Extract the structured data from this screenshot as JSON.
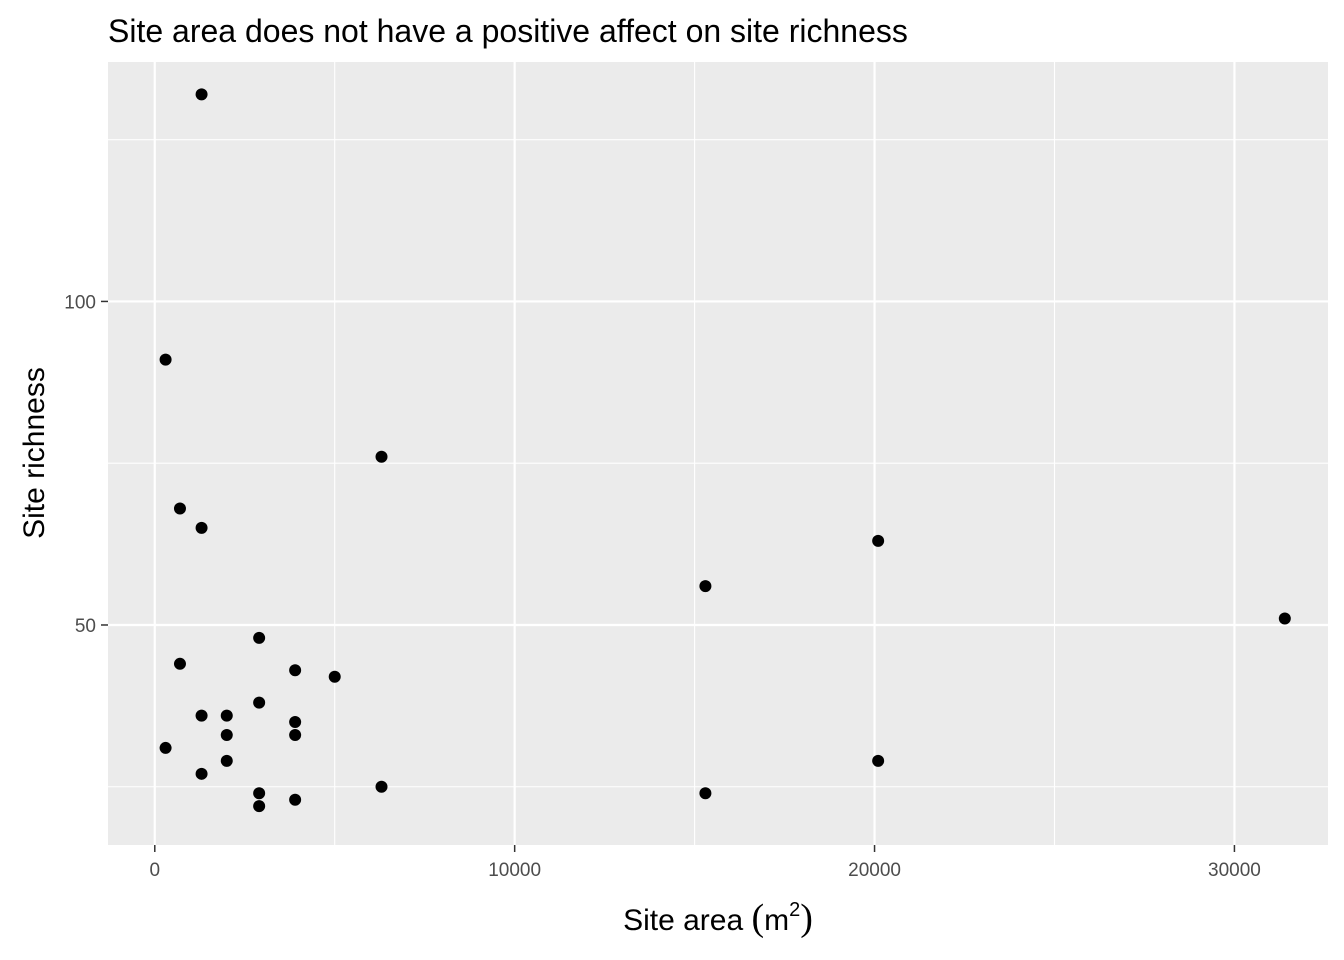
{
  "chart_data": {
    "type": "scatter",
    "title": "Site area does not have a positive affect on site richness",
    "xlabel": {
      "prefix": "Site area ",
      "open": "(",
      "unit": "m",
      "exponent": "2",
      "close": ")"
    },
    "ylabel": "Site richness",
    "xlim": [
      -1300,
      32600
    ],
    "ylim": [
      16,
      137
    ],
    "x_ticks": [
      0,
      10000,
      20000,
      30000
    ],
    "x_tick_labels": [
      "0",
      "10000",
      "20000",
      "30000"
    ],
    "x_minor": [
      5000,
      15000,
      25000
    ],
    "y_ticks": [
      50,
      100
    ],
    "y_tick_labels": [
      "50",
      "100"
    ],
    "y_minor": [
      25,
      75,
      125
    ],
    "grid": true,
    "colors": {
      "panel": "#ebebeb",
      "grid": "#ffffff",
      "point": "#000000"
    },
    "points": [
      {
        "x": 1300,
        "y": 132
      },
      {
        "x": 300,
        "y": 91
      },
      {
        "x": 6300,
        "y": 76
      },
      {
        "x": 700,
        "y": 68
      },
      {
        "x": 1300,
        "y": 65
      },
      {
        "x": 20100,
        "y": 63
      },
      {
        "x": 15300,
        "y": 56
      },
      {
        "x": 31400,
        "y": 51
      },
      {
        "x": 2900,
        "y": 48
      },
      {
        "x": 700,
        "y": 44
      },
      {
        "x": 3900,
        "y": 43
      },
      {
        "x": 5000,
        "y": 42
      },
      {
        "x": 2900,
        "y": 38
      },
      {
        "x": 1300,
        "y": 36
      },
      {
        "x": 2000,
        "y": 36
      },
      {
        "x": 3900,
        "y": 35
      },
      {
        "x": 2000,
        "y": 33
      },
      {
        "x": 3900,
        "y": 33
      },
      {
        "x": 300,
        "y": 31
      },
      {
        "x": 2000,
        "y": 29
      },
      {
        "x": 20100,
        "y": 29
      },
      {
        "x": 1300,
        "y": 27
      },
      {
        "x": 6300,
        "y": 25
      },
      {
        "x": 2900,
        "y": 24
      },
      {
        "x": 15300,
        "y": 24
      },
      {
        "x": 3900,
        "y": 23
      },
      {
        "x": 2900,
        "y": 22
      }
    ]
  }
}
